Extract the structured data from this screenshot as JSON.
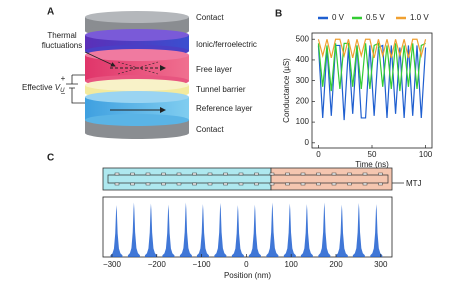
{
  "panel_labels": [
    "A",
    "B",
    "C"
  ],
  "diagram": {
    "layers": [
      "Contact",
      "Ionic/ferroelectric",
      "Free layer",
      "Tunnel barrier",
      "Reference layer",
      "Contact"
    ],
    "thermal_label": [
      "Thermal",
      "fluctuations"
    ],
    "effective_label": "Effective",
    "voltage_symbol": "V",
    "voltage_subscript": "U",
    "plus": "+",
    "minus": "−",
    "waveguide_label": "MTJ"
  },
  "chart_data": [
    {
      "type": "line",
      "xlabel": "Time (ns)",
      "ylabel": "Conductance (µS)",
      "x": [
        0,
        4,
        8,
        12,
        16,
        20,
        24,
        28,
        32,
        36,
        40,
        44,
        48,
        52,
        56,
        60,
        64,
        68,
        72,
        76,
        80,
        84,
        88,
        92,
        96,
        100
      ],
      "series": [
        {
          "name": "0 V",
          "color": "#1f5fd0",
          "values": [
            470,
            120,
            460,
            130,
            470,
            470,
            110,
            460,
            140,
            470,
            120,
            120,
            470,
            130,
            460,
            470,
            120,
            470,
            140,
            460,
            120,
            470,
            130,
            470,
            120,
            460
          ]
        },
        {
          "name": "0.5 V",
          "color": "#33cc33",
          "values": [
            480,
            270,
            470,
            250,
            480,
            260,
            480,
            480,
            270,
            470,
            260,
            480,
            260,
            470,
            480,
            270,
            470,
            260,
            480,
            250,
            470,
            270,
            480,
            260,
            470,
            480
          ]
        },
        {
          "name": "1.0 V",
          "color": "#f0a030",
          "values": [
            500,
            420,
            500,
            410,
            500,
            500,
            420,
            500,
            410,
            500,
            420,
            500,
            500,
            410,
            500,
            420,
            500,
            410,
            500,
            420,
            500,
            410,
            500,
            500,
            420,
            500
          ]
        }
      ],
      "xlim": [
        -6,
        106
      ],
      "ylim": [
        -25,
        530
      ],
      "xticks": [
        0,
        50,
        100
      ],
      "yticks": [
        0,
        100,
        200,
        300,
        400,
        500
      ]
    },
    {
      "type": "peaks",
      "xlabel": "Position (nm)",
      "color": "#1f5fd0",
      "x": [
        -290,
        -251,
        -213,
        -174,
        -135,
        -97,
        -58,
        -19,
        19,
        58,
        97,
        135,
        174,
        213,
        251,
        290
      ],
      "values": [
        0.95,
        1,
        0.98,
        0.96,
        1,
        0.97,
        0.99,
        0.95,
        0.96,
        1,
        0.98,
        0.97,
        1,
        0.96,
        0.99,
        0.97
      ],
      "xlim": [
        -320,
        325
      ],
      "ylim": [
        0,
        1.1
      ],
      "xticks": [
        {
          "value": -300,
          "label": "−300"
        },
        {
          "value": -200,
          "label": "−200"
        },
        {
          "value": -100,
          "label": "−100"
        },
        0,
        100,
        200,
        300
      ]
    }
  ]
}
